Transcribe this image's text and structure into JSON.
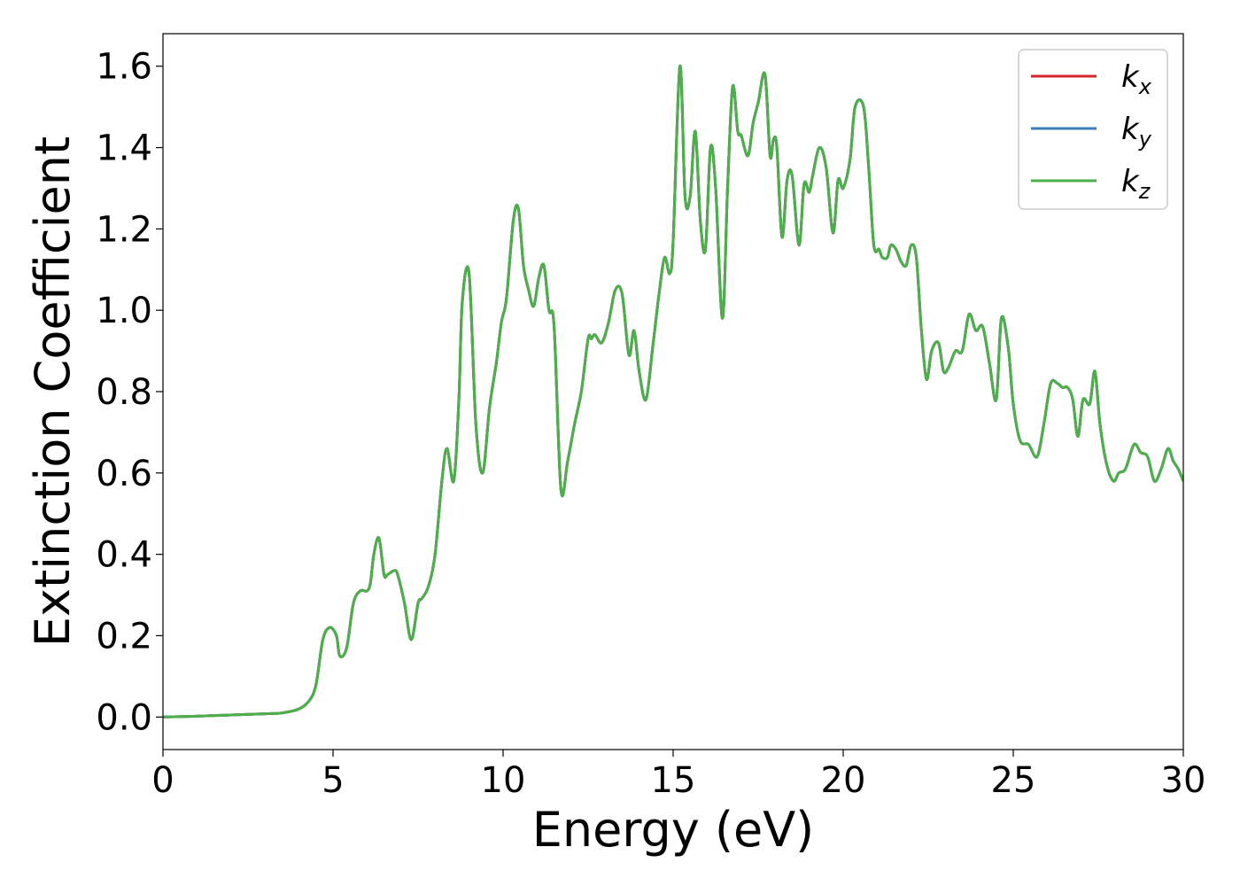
{
  "chart_data": {
    "type": "line",
    "title": "",
    "xlabel": "Energy (eV)",
    "ylabel": "Extinction Coefficient",
    "xlim": [
      0,
      30
    ],
    "ylim": [
      -0.08,
      1.68
    ],
    "x_ticks": [
      0,
      5,
      10,
      15,
      20,
      25,
      30
    ],
    "y_ticks": [
      0.0,
      0.2,
      0.4,
      0.6,
      0.8,
      1.0,
      1.2,
      1.4,
      1.6
    ],
    "x_tick_labels": [
      "0",
      "5",
      "10",
      "15",
      "20",
      "25",
      "30"
    ],
    "y_tick_labels": [
      "0.0",
      "0.2",
      "0.4",
      "0.6",
      "0.8",
      "1.0",
      "1.2",
      "1.4",
      "1.6"
    ],
    "grid": false,
    "legend_position": "top-right",
    "x": [
      0,
      1,
      2,
      3,
      3.5,
      4,
      4.3,
      4.5,
      4.7,
      4.9,
      5.1,
      5.2,
      5.4,
      5.6,
      5.8,
      6.0,
      6.1,
      6.2,
      6.35,
      6.5,
      6.6,
      6.8,
      6.9,
      7.1,
      7.3,
      7.5,
      7.6,
      7.8,
      8.0,
      8.2,
      8.35,
      8.55,
      8.7,
      8.8,
      9.0,
      9.2,
      9.4,
      9.6,
      9.8,
      9.95,
      10.1,
      10.3,
      10.45,
      10.6,
      10.75,
      10.9,
      11.05,
      11.2,
      11.35,
      11.5,
      11.7,
      11.9,
      12.1,
      12.3,
      12.5,
      12.6,
      12.7,
      12.9,
      13.1,
      13.3,
      13.5,
      13.7,
      13.85,
      14.0,
      14.2,
      14.4,
      14.6,
      14.75,
      14.9,
      15.0,
      15.2,
      15.35,
      15.5,
      15.65,
      15.8,
      15.95,
      16.1,
      16.25,
      16.45,
      16.6,
      16.75,
      16.9,
      17.0,
      17.2,
      17.35,
      17.5,
      17.7,
      17.85,
      17.95,
      18.05,
      18.2,
      18.35,
      18.5,
      18.7,
      18.85,
      19.0,
      19.1,
      19.3,
      19.5,
      19.7,
      19.85,
      20.0,
      20.2,
      20.35,
      20.6,
      20.75,
      20.9,
      21.05,
      21.15,
      21.3,
      21.4,
      21.55,
      21.7,
      21.85,
      22.0,
      22.15,
      22.3,
      22.45,
      22.6,
      22.8,
      22.95,
      23.1,
      23.3,
      23.5,
      23.7,
      23.9,
      24.1,
      24.3,
      24.5,
      24.65,
      24.85,
      25.0,
      25.2,
      25.45,
      25.7,
      25.9,
      26.1,
      26.3,
      26.45,
      26.6,
      26.75,
      26.9,
      27.05,
      27.25,
      27.4,
      27.55,
      27.75,
      27.95,
      28.1,
      28.3,
      28.55,
      28.75,
      28.95,
      29.15,
      29.35,
      29.55,
      29.7,
      29.85,
      30.0
    ],
    "y_values": [
      0.0,
      0.002,
      0.005,
      0.008,
      0.01,
      0.02,
      0.04,
      0.08,
      0.19,
      0.22,
      0.2,
      0.15,
      0.17,
      0.28,
      0.31,
      0.31,
      0.33,
      0.4,
      0.44,
      0.35,
      0.35,
      0.36,
      0.35,
      0.28,
      0.19,
      0.28,
      0.29,
      0.32,
      0.4,
      0.58,
      0.66,
      0.58,
      0.78,
      1.02,
      1.09,
      0.72,
      0.6,
      0.76,
      0.87,
      0.97,
      1.03,
      1.22,
      1.25,
      1.11,
      1.05,
      1.01,
      1.08,
      1.11,
      1.0,
      0.96,
      0.56,
      0.63,
      0.72,
      0.8,
      0.93,
      0.93,
      0.94,
      0.92,
      0.97,
      1.05,
      1.04,
      0.89,
      0.95,
      0.85,
      0.78,
      0.91,
      1.05,
      1.13,
      1.09,
      1.17,
      1.6,
      1.28,
      1.28,
      1.44,
      1.22,
      1.15,
      1.4,
      1.3,
      0.98,
      1.3,
      1.55,
      1.44,
      1.43,
      1.38,
      1.46,
      1.51,
      1.58,
      1.38,
      1.42,
      1.4,
      1.18,
      1.32,
      1.33,
      1.16,
      1.31,
      1.29,
      1.33,
      1.4,
      1.35,
      1.19,
      1.32,
      1.3,
      1.37,
      1.5,
      1.5,
      1.35,
      1.16,
      1.15,
      1.13,
      1.13,
      1.16,
      1.15,
      1.12,
      1.11,
      1.16,
      1.13,
      0.95,
      0.83,
      0.9,
      0.92,
      0.85,
      0.86,
      0.9,
      0.9,
      0.99,
      0.95,
      0.96,
      0.87,
      0.78,
      0.98,
      0.91,
      0.77,
      0.68,
      0.67,
      0.64,
      0.72,
      0.82,
      0.82,
      0.81,
      0.81,
      0.78,
      0.69,
      0.78,
      0.77,
      0.85,
      0.72,
      0.62,
      0.58,
      0.6,
      0.61,
      0.67,
      0.65,
      0.64,
      0.58,
      0.61,
      0.66,
      0.63,
      0.61,
      0.58
    ],
    "series": [
      {
        "name": "k_x",
        "legend_main": "k",
        "legend_sub": "x",
        "color": "#d62728"
      },
      {
        "name": "k_y",
        "legend_main": "k",
        "legend_sub": "y",
        "color": "#377eb8"
      },
      {
        "name": "k_z",
        "legend_main": "k",
        "legend_sub": "z",
        "color": "#4daf4a"
      }
    ]
  }
}
